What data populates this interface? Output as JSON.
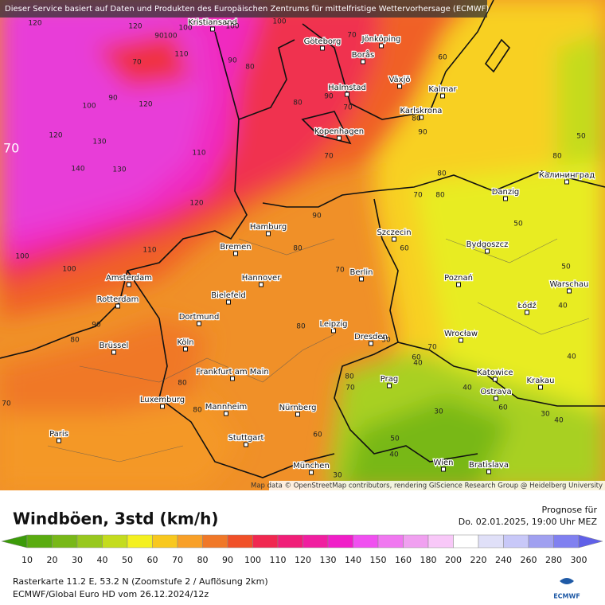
{
  "header": {
    "notice": "Dieser Service basiert auf Daten und Produkten des Europäischen Zentrums für mittelfristige Wettervorhersage (ECMWF)"
  },
  "map": {
    "attribution": "Map data © OpenStreetMap contributors, rendering GIScience Research Group @ Heidelberg University",
    "cities": [
      "Kristiansand",
      "Göteborg",
      "Jönköping",
      "Borås",
      "Växjö",
      "Halmstad",
      "Kalmar",
      "Karlskrona",
      "Kopenhagen",
      "Калининград",
      "Danzig",
      "Hamburg",
      "Szczecin",
      "Bremen",
      "Bydgoszcz",
      "Amsterdam",
      "Hannover",
      "Berlin",
      "Poznań",
      "Warschau",
      "Rotterdam",
      "Bielefeld",
      "Łódź",
      "Dortmund",
      "Leipzig",
      "Wrocław",
      "Dresden",
      "Brüssel",
      "Köln",
      "Katowice",
      "Krakau",
      "Prag",
      "Frankfurt am Main",
      "Ostrava",
      "Luxemburg",
      "Mannheim",
      "Nürnberg",
      "Paris",
      "Stuttgart",
      "Wien",
      "Bratislava",
      "München"
    ],
    "edge_label": 70,
    "contour_labels": [
      120,
      100,
      90,
      100,
      110,
      70,
      90,
      100,
      100,
      120,
      100,
      90,
      120,
      120,
      130,
      140,
      130,
      110,
      120,
      80,
      80,
      90,
      70,
      60,
      70,
      80,
      90,
      70,
      80,
      80,
      70,
      80,
      50,
      90,
      80,
      70,
      60,
      50,
      100,
      110,
      90,
      80,
      80,
      60,
      70,
      80,
      70,
      50,
      40,
      60,
      50,
      40,
      30,
      40,
      30,
      40,
      40,
      40,
      50,
      80,
      80,
      70,
      30,
      60,
      100
    ]
  },
  "legend": {
    "title": "Windböen, 3std (km/h)",
    "forecast_label": "Prognose für",
    "forecast_time": "Do. 02.01.2025, 19:00 Uhr MEZ",
    "values": [
      10,
      20,
      30,
      40,
      50,
      60,
      70,
      80,
      90,
      100,
      110,
      120,
      130,
      140,
      150,
      160,
      180,
      200,
      220,
      240,
      260,
      280,
      300
    ],
    "colors": [
      "#3c9b0a",
      "#5aac10",
      "#78b818",
      "#98c81e",
      "#c4dc1e",
      "#f4f020",
      "#f8c81e",
      "#f8a028",
      "#f07828",
      "#f05028",
      "#f02850",
      "#f01e78",
      "#f01ea0",
      "#f01ec8",
      "#f050f0",
      "#f078f0",
      "#f0a0f0",
      "#f8c8f8",
      "#ffffff",
      "#e0e0f8",
      "#c8c8f8",
      "#a0a0f0",
      "#8080f0",
      "#6060e8"
    ]
  },
  "footer": {
    "raster": "Rasterkarte 11.2 E, 53.2 N (Zoomstufe 2 / Auflösung 2km)",
    "model": "ECMWF/Global Euro HD vom 26.12.2024/12z",
    "logo": "ECMWF"
  }
}
